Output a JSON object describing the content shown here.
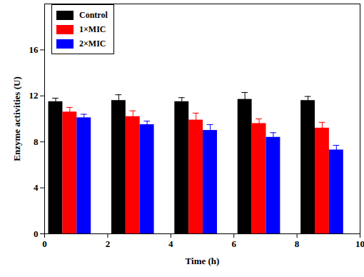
{
  "chart_data": {
    "type": "bar",
    "x_label": "Time (h)",
    "y_label": "Enzyme activities (U)",
    "x": [
      0.8,
      2.8,
      4.8,
      6.8,
      8.8
    ],
    "series": [
      {
        "name": "Control",
        "color": "#000000",
        "values": [
          11.5,
          11.6,
          11.5,
          11.7,
          11.6
        ],
        "errors": [
          0.3,
          0.5,
          0.35,
          0.6,
          0.35
        ]
      },
      {
        "name": "1×MIC",
        "color": "#ff0000",
        "values": [
          10.6,
          10.2,
          9.9,
          9.6,
          9.2
        ],
        "errors": [
          0.4,
          0.5,
          0.6,
          0.4,
          0.5
        ]
      },
      {
        "name": "2×MIC",
        "color": "#0000ff",
        "values": [
          10.1,
          9.5,
          9.0,
          8.4,
          7.3
        ],
        "errors": [
          0.3,
          0.3,
          0.5,
          0.4,
          0.4
        ]
      }
    ],
    "xlim": [
      0,
      10
    ],
    "xticks": [
      0,
      2,
      4,
      6,
      8,
      10
    ],
    "ylim": [
      0,
      20
    ],
    "yticks": [
      0,
      4,
      8,
      12,
      16
    ],
    "legend": "upper left"
  }
}
